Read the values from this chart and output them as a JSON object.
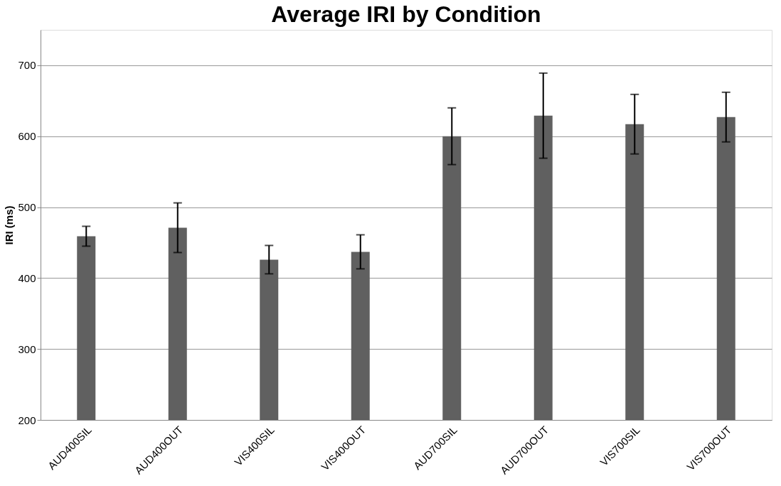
{
  "chart_data": {
    "type": "bar",
    "title": "Average IRI by Condition",
    "ylabel": "IRI (ms)",
    "categories": [
      "AUD400SIL",
      "AUD400OUT",
      "VIS400SIL",
      "VIS400OUT",
      "AUD700SIL",
      "AUD700OUT",
      "VIS700SIL",
      "VIS700OUT"
    ],
    "series": [
      {
        "color": "#606060",
        "values": [
          459,
          471,
          426,
          437,
          600,
          629,
          617,
          627
        ],
        "errors": [
          14,
          35,
          20,
          24,
          40,
          60,
          42,
          35
        ]
      }
    ],
    "ylim": [
      200,
      750
    ],
    "yticks": [
      200,
      300,
      400,
      500,
      600,
      700
    ],
    "grid": "y"
  }
}
